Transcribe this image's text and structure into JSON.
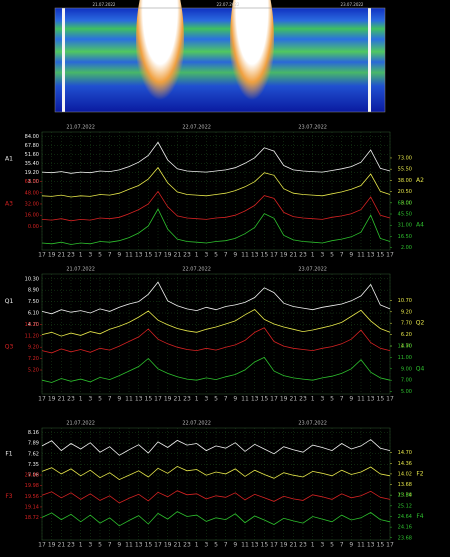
{
  "spectrogram": {
    "dates": [
      "21.07.2022",
      "22.07.2022",
      "23.07.2022"
    ]
  },
  "chart_data": [
    {
      "type": "line",
      "grid": true,
      "dates": [
        "21.07.2022",
        "22.07.2022",
        "23.07.2022"
      ],
      "categories": [
        "17",
        "19",
        "21",
        "23",
        "1",
        "3",
        "5",
        "7",
        "9",
        "11",
        "13",
        "15",
        "17",
        "19",
        "21",
        "23",
        "1",
        "3",
        "5",
        "7",
        "9",
        "11",
        "13",
        "15",
        "17",
        "19",
        "21",
        "23",
        "1",
        "3",
        "5",
        "7",
        "9",
        "11",
        "13",
        "15",
        "17"
      ],
      "series": [
        {
          "name": "A1",
          "color": "#f0f0f0",
          "side": "left",
          "ylim": [
            3,
            84
          ],
          "yticks": [
            {
              "value": 84,
              "label": "84.00"
            },
            {
              "value": 67.8,
              "label": "67.80"
            },
            {
              "value": 51.6,
              "label": "51.60"
            },
            {
              "value": 35.4,
              "label": "35.40"
            },
            {
              "value": 19.2,
              "label": "19.20"
            },
            {
              "value": 3,
              "label": "3.00"
            }
          ],
          "values": [
            20,
            19,
            21,
            18,
            20,
            19,
            22,
            21,
            24,
            30,
            38,
            50,
            74,
            42,
            26,
            22,
            21,
            20,
            22,
            24,
            28,
            36,
            46,
            64,
            58,
            32,
            24,
            22,
            21,
            20,
            23,
            26,
            30,
            38,
            60,
            27,
            22
          ]
        },
        {
          "name": "A2",
          "color": "#e6e64a",
          "side": "right",
          "ylim": [
            3,
            73
          ],
          "yticks": [
            {
              "value": 73,
              "label": "73.00"
            },
            {
              "value": 55.5,
              "label": "55.50"
            },
            {
              "value": 38,
              "label": "38.00"
            },
            {
              "value": 20.5,
              "label": "20.50"
            },
            {
              "value": 3,
              "label": "3.00"
            }
          ],
          "values": [
            14,
            13,
            15,
            12,
            14,
            13,
            16,
            15,
            18,
            24,
            30,
            40,
            58,
            34,
            20,
            16,
            15,
            14,
            16,
            18,
            22,
            28,
            36,
            50,
            46,
            25,
            18,
            16,
            15,
            14,
            17,
            20,
            24,
            30,
            48,
            21,
            16
          ]
        },
        {
          "name": "A3",
          "color": "#d42222",
          "side": "left",
          "ylim": [
            0,
            64
          ],
          "yticks": [
            {
              "value": 64,
              "label": "64.00"
            },
            {
              "value": 48,
              "label": "48.00"
            },
            {
              "value": 32,
              "label": "32.00"
            },
            {
              "value": 16,
              "label": "16.00"
            },
            {
              "value": 0,
              "label": "0.00"
            }
          ],
          "values": [
            10,
            9,
            11,
            8,
            10,
            9,
            12,
            11,
            13,
            18,
            24,
            32,
            50,
            28,
            15,
            12,
            11,
            10,
            12,
            13,
            16,
            22,
            30,
            44,
            40,
            20,
            14,
            12,
            11,
            10,
            13,
            15,
            18,
            24,
            42,
            16,
            12
          ]
        },
        {
          "name": "A4",
          "color": "#2ec02e",
          "side": "right",
          "ylim": [
            2,
            60
          ],
          "yticks": [
            {
              "value": 60,
              "label": "60.00"
            },
            {
              "value": 45.5,
              "label": "45.50"
            },
            {
              "value": 31,
              "label": "31.00"
            },
            {
              "value": 16.5,
              "label": "16.50"
            },
            {
              "value": 2,
              "label": "2.00"
            }
          ],
          "values": [
            8,
            7,
            9,
            6,
            8,
            7,
            10,
            9,
            11,
            15,
            21,
            30,
            52,
            26,
            13,
            10,
            9,
            8,
            10,
            11,
            14,
            20,
            28,
            46,
            40,
            18,
            12,
            10,
            9,
            8,
            11,
            13,
            16,
            22,
            44,
            14,
            10
          ]
        }
      ]
    },
    {
      "type": "line",
      "grid": true,
      "dates": [
        "21.07.2022",
        "22.07.2022",
        "23.07.2022"
      ],
      "categories": [
        "17",
        "19",
        "21",
        "23",
        "1",
        "3",
        "5",
        "7",
        "9",
        "11",
        "13",
        "15",
        "17",
        "19",
        "21",
        "23",
        "1",
        "3",
        "5",
        "7",
        "9",
        "11",
        "13",
        "15",
        "17",
        "19",
        "21",
        "23",
        "1",
        "3",
        "5",
        "7",
        "9",
        "11",
        "13",
        "15",
        "17"
      ],
      "series": [
        {
          "name": "Q1",
          "color": "#f0f0f0",
          "side": "left",
          "ylim": [
            4.7,
            10.3
          ],
          "yticks": [
            {
              "value": 10.3,
              "label": "10.30"
            },
            {
              "value": 8.9,
              "label": "8.90"
            },
            {
              "value": 7.5,
              "label": "7.50"
            },
            {
              "value": 6.1,
              "label": "6.10"
            },
            {
              "value": 4.7,
              "label": "4.70"
            }
          ],
          "values": [
            6.3,
            6.0,
            6.5,
            6.2,
            6.4,
            6.1,
            6.6,
            6.3,
            6.8,
            7.2,
            7.5,
            8.4,
            9.9,
            7.6,
            7.0,
            6.6,
            6.4,
            6.8,
            6.5,
            6.9,
            7.1,
            7.4,
            8.0,
            9.2,
            8.6,
            7.3,
            6.9,
            6.7,
            6.5,
            6.8,
            7.0,
            7.2,
            7.6,
            8.2,
            9.6,
            7.1,
            6.6
          ]
        },
        {
          "name": "Q2",
          "color": "#e6e64a",
          "side": "right",
          "ylim": [
            4.7,
            10.7
          ],
          "yticks": [
            {
              "value": 10.7,
              "label": "10.70"
            },
            {
              "value": 9.2,
              "label": "9.20"
            },
            {
              "value": 7.7,
              "label": "7.70"
            },
            {
              "value": 6.2,
              "label": "6.20"
            },
            {
              "value": 4.7,
              "label": "4.70"
            }
          ],
          "values": [
            6.2,
            6.5,
            6.0,
            6.4,
            6.1,
            6.6,
            6.3,
            6.9,
            7.3,
            7.8,
            8.5,
            9.3,
            8.1,
            7.5,
            7.0,
            6.7,
            6.5,
            6.9,
            7.2,
            7.6,
            8.0,
            8.8,
            9.5,
            8.2,
            7.6,
            7.2,
            6.9,
            6.6,
            6.8,
            7.1,
            7.4,
            7.8,
            8.6,
            9.4,
            8.0,
            7.0,
            6.5
          ]
        },
        {
          "name": "Q3",
          "color": "#d42222",
          "side": "left",
          "ylim": [
            5.2,
            13.2
          ],
          "yticks": [
            {
              "value": 13.2,
              "label": "13.20"
            },
            {
              "value": 11.2,
              "label": "11.20"
            },
            {
              "value": 9.2,
              "label": "9.20"
            },
            {
              "value": 7.2,
              "label": "7.20"
            },
            {
              "value": 5.2,
              "label": "5.20"
            }
          ],
          "values": [
            8.6,
            8.2,
            8.9,
            8.4,
            8.8,
            8.3,
            9.0,
            8.7,
            9.4,
            10.2,
            11.0,
            12.4,
            10.6,
            9.8,
            9.2,
            8.8,
            8.6,
            9.0,
            8.7,
            9.2,
            9.6,
            10.4,
            11.8,
            12.6,
            10.2,
            9.4,
            9.0,
            8.8,
            8.6,
            9.0,
            9.3,
            9.8,
            10.6,
            12.2,
            10.0,
            9.0,
            8.6
          ]
        },
        {
          "name": "Q4",
          "color": "#2ec02e",
          "side": "right",
          "ylim": [
            5,
            13
          ],
          "yticks": [
            {
              "value": 13,
              "label": "13.00"
            },
            {
              "value": 11,
              "label": "11.00"
            },
            {
              "value": 9,
              "label": "9.00"
            },
            {
              "value": 7,
              "label": "7.00"
            },
            {
              "value": 5,
              "label": "5.00"
            }
          ],
          "values": [
            7.0,
            6.6,
            7.3,
            6.8,
            7.2,
            6.7,
            7.5,
            7.1,
            7.8,
            8.6,
            9.4,
            10.8,
            9.0,
            8.2,
            7.6,
            7.2,
            7.0,
            7.4,
            7.1,
            7.6,
            8.0,
            8.8,
            10.2,
            11.0,
            8.6,
            7.8,
            7.4,
            7.2,
            7.0,
            7.4,
            7.7,
            8.2,
            9.0,
            10.6,
            8.4,
            7.4,
            7.0
          ]
        }
      ]
    },
    {
      "type": "line",
      "grid": true,
      "dates": [
        "21.07.2022",
        "22.07.2022",
        "23.07.2022"
      ],
      "categories": [
        "17",
        "19",
        "21",
        "23",
        "1",
        "3",
        "5",
        "7",
        "9",
        "11",
        "13",
        "15",
        "17",
        "19",
        "21",
        "23",
        "1",
        "3",
        "5",
        "7",
        "9",
        "11",
        "13",
        "15",
        "17",
        "19",
        "21",
        "23",
        "1",
        "3",
        "5",
        "7",
        "9",
        "11",
        "13",
        "15",
        "17"
      ],
      "series": [
        {
          "name": "F1",
          "color": "#f0f0f0",
          "side": "left",
          "ylim": [
            7.08,
            8.16
          ],
          "yticks": [
            {
              "value": 8.16,
              "label": "8.16"
            },
            {
              "value": 7.89,
              "label": "7.89"
            },
            {
              "value": 7.62,
              "label": "7.62"
            },
            {
              "value": 7.35,
              "label": "7.35"
            },
            {
              "value": 7.08,
              "label": "7.08"
            }
          ],
          "values": [
            7.82,
            7.95,
            7.7,
            7.88,
            7.74,
            7.9,
            7.66,
            7.8,
            7.58,
            7.72,
            7.85,
            7.64,
            7.92,
            7.78,
            7.96,
            7.84,
            7.88,
            7.7,
            7.82,
            7.76,
            7.9,
            7.68,
            7.86,
            7.74,
            7.62,
            7.8,
            7.72,
            7.66,
            7.84,
            7.78,
            7.7,
            7.88,
            7.74,
            7.82,
            7.98,
            7.76,
            7.7
          ]
        },
        {
          "name": "F2",
          "color": "#e6e64a",
          "side": "right",
          "ylim": [
            13.34,
            14.7
          ],
          "yticks": [
            {
              "value": 14.7,
              "label": "14.70"
            },
            {
              "value": 14.36,
              "label": "14.36"
            },
            {
              "value": 14.02,
              "label": "14.02"
            },
            {
              "value": 13.68,
              "label": "13.68"
            },
            {
              "value": 13.34,
              "label": "13.34"
            }
          ],
          "values": [
            14.1,
            14.22,
            14.02,
            14.18,
            13.96,
            14.14,
            13.9,
            14.06,
            13.84,
            13.98,
            14.12,
            13.92,
            14.2,
            14.04,
            14.26,
            14.12,
            14.16,
            13.98,
            14.08,
            14.02,
            14.18,
            13.94,
            14.14,
            14.0,
            13.88,
            14.06,
            13.98,
            13.92,
            14.1,
            14.04,
            13.96,
            14.14,
            14.0,
            14.08,
            14.24,
            14.02,
            13.96
          ]
        },
        {
          "name": "F3",
          "color": "#d42222",
          "side": "left",
          "ylim": [
            18.72,
            20.4
          ],
          "yticks": [
            {
              "value": 20.4,
              "label": "20.40"
            },
            {
              "value": 19.98,
              "label": "19.98"
            },
            {
              "value": 19.56,
              "label": "19.56"
            },
            {
              "value": 19.14,
              "label": "19.14"
            },
            {
              "value": 18.72,
              "label": "18.72"
            }
          ],
          "values": [
            19.6,
            19.74,
            19.5,
            19.7,
            19.44,
            19.66,
            19.4,
            19.58,
            19.3,
            19.48,
            19.64,
            19.38,
            19.72,
            19.54,
            19.78,
            19.62,
            19.66,
            19.46,
            19.58,
            19.52,
            19.7,
            19.42,
            19.64,
            19.5,
            19.36,
            19.56,
            19.46,
            19.4,
            19.62,
            19.54,
            19.44,
            19.66,
            19.5,
            19.58,
            19.76,
            19.52,
            19.44
          ]
        },
        {
          "name": "F4",
          "color": "#2ec02e",
          "side": "right",
          "ylim": [
            23.68,
            25.6
          ],
          "yticks": [
            {
              "value": 25.6,
              "label": "25.60"
            },
            {
              "value": 25.12,
              "label": "25.12"
            },
            {
              "value": 24.64,
              "label": "24.64"
            },
            {
              "value": 24.16,
              "label": "24.16"
            },
            {
              "value": 23.68,
              "label": "23.68"
            }
          ],
          "values": [
            24.6,
            24.8,
            24.5,
            24.74,
            24.4,
            24.7,
            24.34,
            24.58,
            24.22,
            24.46,
            24.68,
            24.3,
            24.78,
            24.52,
            24.86,
            24.64,
            24.7,
            24.42,
            24.58,
            24.5,
            24.76,
            24.36,
            24.66,
            24.48,
            24.28,
            24.56,
            24.44,
            24.34,
            24.64,
            24.52,
            24.4,
            24.7,
            24.48,
            24.58,
            24.82,
            24.5,
            24.4
          ]
        }
      ]
    }
  ]
}
